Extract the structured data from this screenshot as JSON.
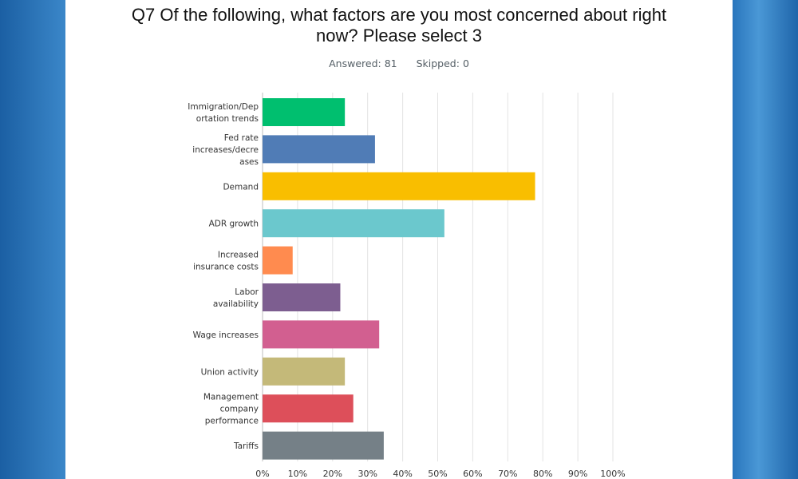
{
  "title": "Q7 Of the following, what factors are you most concerned about right\nnow? Please select 3",
  "answered_label": "Answered:",
  "answered_value": "81",
  "skipped_label": "Skipped:",
  "skipped_value": "0",
  "chart_data": {
    "type": "bar",
    "orientation": "horizontal",
    "categories": [
      [
        "Immigration/Dep",
        "ortation trends"
      ],
      [
        "Fed rate",
        "increases/decre",
        "ases"
      ],
      [
        "Demand"
      ],
      [
        "ADR growth"
      ],
      [
        "Increased",
        "insurance costs"
      ],
      [
        "Labor",
        "availability"
      ],
      [
        "Wage increases"
      ],
      [
        "Union activity"
      ],
      [
        "Management",
        "company",
        "performance"
      ],
      [
        "Tariffs"
      ]
    ],
    "values": [
      23.5,
      32.1,
      77.8,
      51.9,
      8.6,
      22.2,
      33.3,
      23.5,
      25.9,
      34.6
    ],
    "colors": [
      "#00bf6f",
      "#507cb6",
      "#f9be00",
      "#6bc8cd",
      "#ff8b4f",
      "#7d5e90",
      "#d25f90",
      "#c4b979",
      "#dd4f5a",
      "#758087"
    ],
    "xlim": [
      0,
      100
    ],
    "xticks": [
      "0%",
      "10%",
      "20%",
      "30%",
      "40%",
      "50%",
      "60%",
      "70%",
      "80%",
      "90%",
      "100%"
    ],
    "grid": true
  }
}
